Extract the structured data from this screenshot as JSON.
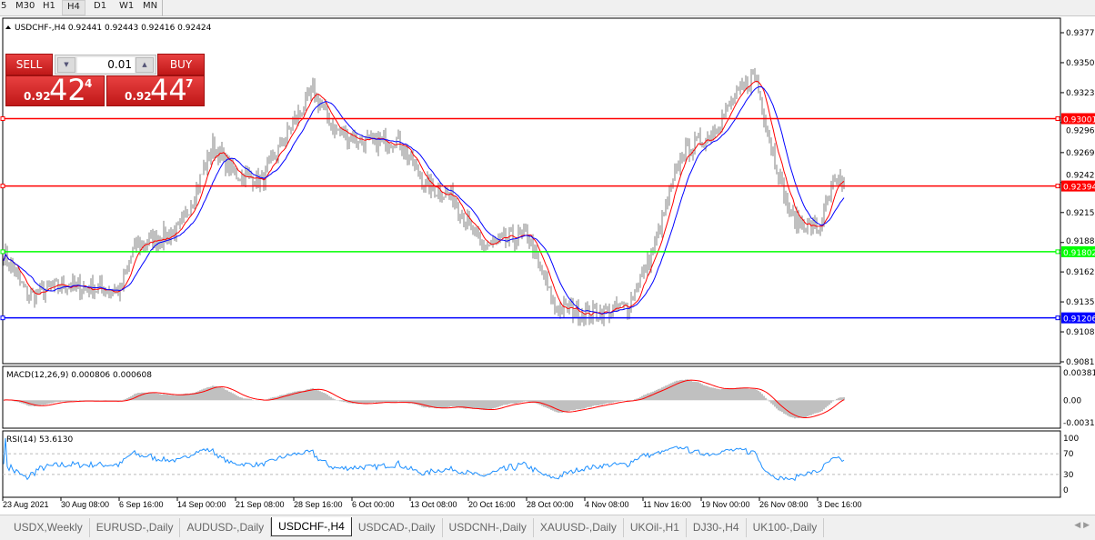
{
  "timeframes": [
    "5",
    "M30",
    "H1",
    "H4",
    "D1",
    "W1",
    "MN"
  ],
  "active_timeframe": "H4",
  "header": {
    "symbol_line": "USDCHF-,H4  0.92441 0.92443 0.92416 0.92424"
  },
  "trade_panel": {
    "sell_label": "SELL",
    "buy_label": "BUY",
    "lot": "0.01",
    "sell_prefix": "0.92",
    "sell_big": "42",
    "sell_sup": "4",
    "buy_prefix": "0.92",
    "buy_big": "44",
    "buy_sup": "7"
  },
  "price_axis": {
    "ticks": [
      "0.93775",
      "0.93505",
      "0.93235",
      "0.92965",
      "0.92695",
      "0.92425",
      "0.92155",
      "0.91885",
      "0.91620",
      "0.91350",
      "0.91080",
      "0.90810"
    ],
    "min": 0.9081,
    "max": 0.93775
  },
  "hlines": [
    {
      "price": "0.93001",
      "color": "#ff0000"
    },
    {
      "price": "0.92394",
      "color": "#ff0000"
    },
    {
      "price": "0.91802",
      "color": "#00ff00"
    },
    {
      "price": "0.91206",
      "color": "#0000ff"
    }
  ],
  "macd": {
    "label": "MACD(12,26,9) 0.000806 0.000608",
    "ticks": [
      "0.003811",
      "0.00",
      "-0.00311"
    ]
  },
  "rsi": {
    "label": "RSI(14) 53.6130",
    "ticks": [
      "100",
      "70",
      "30",
      "0"
    ]
  },
  "time_axis": [
    "23 Aug 2021",
    "30 Aug 08:00",
    "6 Sep 16:00",
    "14 Sep 00:00",
    "21 Sep 08:00",
    "28 Sep 16:00",
    "6 Oct 00:00",
    "13 Oct 08:00",
    "20 Oct 16:00",
    "28 Oct 00:00",
    "4 Nov 08:00",
    "11 Nov 16:00",
    "19 Nov 00:00",
    "26 Nov 08:00",
    "3 Dec 16:00"
  ],
  "tabs": [
    "USDX,Weekly",
    "EURUSD-,Daily",
    "AUDUSD-,Daily",
    "USDCHF-,H4",
    "USDCAD-,Daily",
    "USDCNH-,Daily",
    "XAUUSD-,Daily",
    "UKOil-,H1",
    "DJ30-,H4",
    "UK100-,Daily"
  ],
  "active_tab": "USDCHF-,H4",
  "chart_data": {
    "type": "bar",
    "symbol": "USDCHF-",
    "timeframe": "H4",
    "ylim": [
      0.9081,
      0.93775
    ],
    "close_path": [
      [
        "2021-08-23 00:00",
        0.918
      ],
      [
        "2021-08-25 04:00",
        0.914
      ],
      [
        "2021-08-30 08:00",
        0.915
      ],
      [
        "2021-09-06 16:00",
        0.9145
      ],
      [
        "2021-09-08 00:00",
        0.9185
      ],
      [
        "2021-09-14 04:00",
        0.92
      ],
      [
        "2021-09-17 04:00",
        0.9275
      ],
      [
        "2021-09-21 04:00",
        0.925
      ],
      [
        "2021-09-23 16:00",
        0.9245
      ],
      [
        "2021-09-28 04:00",
        0.929
      ],
      [
        "2021-09-30 08:00",
        0.9325
      ],
      [
        "2021-10-04 08:00",
        0.929
      ],
      [
        "2021-10-07 16:00",
        0.9278
      ],
      [
        "2021-10-12 04:00",
        0.9282
      ],
      [
        "2021-10-14 16:00",
        0.924
      ],
      [
        "2021-10-19 04:00",
        0.923
      ],
      [
        "2021-10-21 16:00",
        0.9185
      ],
      [
        "2021-10-28 00:00",
        0.9195
      ],
      [
        "2021-11-01 12:00",
        0.913
      ],
      [
        "2021-11-04 20:00",
        0.9125
      ],
      [
        "2021-11-10 04:00",
        0.913
      ],
      [
        "2021-11-12 16:00",
        0.9185
      ],
      [
        "2021-11-17 04:00",
        0.927
      ],
      [
        "2021-11-19 16:00",
        0.9285
      ],
      [
        "2021-11-24 04:00",
        0.932
      ],
      [
        "2021-11-25 20:00",
        0.934
      ],
      [
        "2021-11-29 12:00",
        0.927
      ],
      [
        "2021-12-01 04:00",
        0.921
      ],
      [
        "2021-12-03 16:00",
        0.92
      ],
      [
        "2021-12-07 00:00",
        0.924
      ],
      [
        "2021-12-08 00:00",
        0.92424
      ]
    ],
    "ma_colors": [
      "#ff0000",
      "#0000ff"
    ],
    "bar_color": "#808080",
    "macd_histogram_color": "#c0c0c0",
    "macd_signal_color": "#ff0000",
    "rsi_color": "#1e90ff",
    "rsi_levels": [
      70,
      30
    ]
  }
}
